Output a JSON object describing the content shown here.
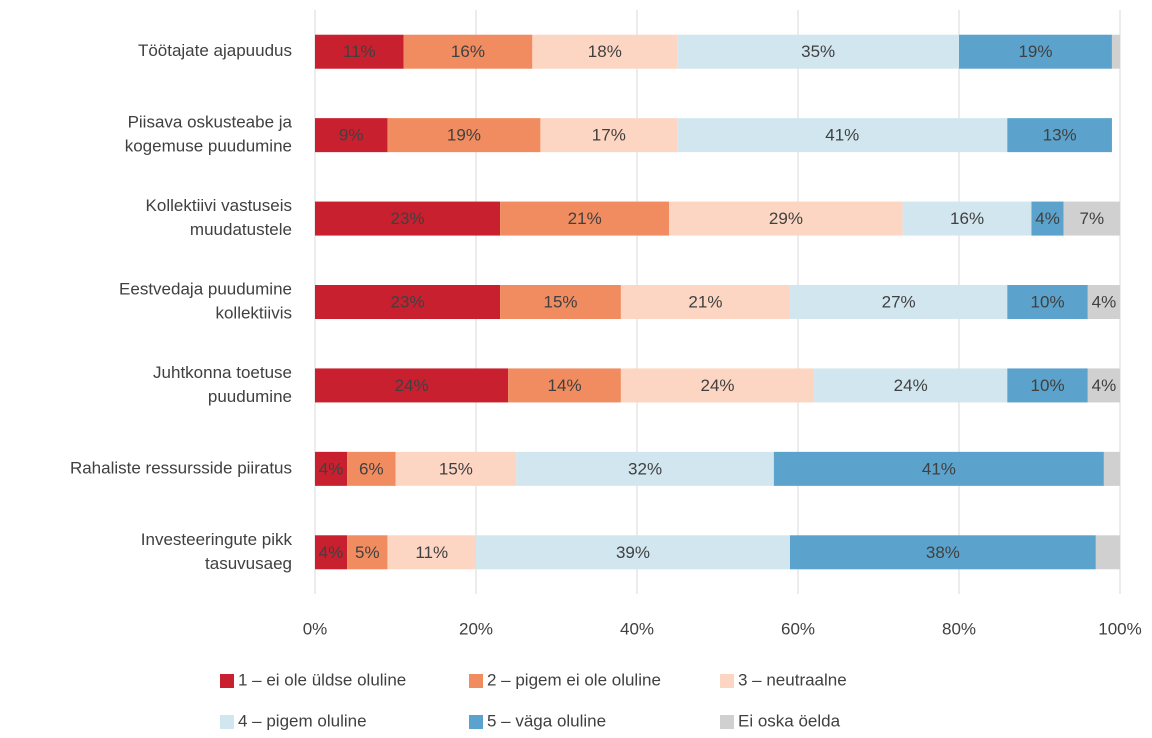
{
  "chart_data": {
    "type": "stacked-bar-horizontal",
    "categories": [
      [
        "Töötajate ajapuudus"
      ],
      [
        "Piisava oskusteabe ja",
        "kogemuse puudumine"
      ],
      [
        "Kollektiivi vastuseis",
        "muudatustele"
      ],
      [
        "Eestvedaja puudumine",
        "kollektiivis"
      ],
      [
        "Juhtkonna toetuse",
        "puudumine"
      ],
      [
        "Rahaliste ressursside piiratus"
      ],
      [
        "Investeeringute pikk",
        "tasuvusaeg"
      ]
    ],
    "series": [
      {
        "name": "1 – ei ole üldse oluline",
        "color": "#c8202f",
        "values": [
          11,
          9,
          23,
          23,
          24,
          4,
          4
        ],
        "value_labels": [
          "11%",
          "9%",
          "23%",
          "23%",
          "24%",
          "4%",
          "4%"
        ]
      },
      {
        "name": "2 – pigem ei ole oluline",
        "color": "#f08c5f",
        "values": [
          16,
          19,
          21,
          15,
          14,
          6,
          5
        ],
        "value_labels": [
          "16%",
          "19%",
          "21%",
          "15%",
          "14%",
          "6%",
          "5%"
        ]
      },
      {
        "name": "3 – neutraalne",
        "color": "#fcd6c2",
        "values": [
          18,
          17,
          29,
          21,
          24,
          15,
          11
        ],
        "value_labels": [
          "18%",
          "17%",
          "29%",
          "21%",
          "24%",
          "15%",
          "11%"
        ]
      },
      {
        "name": "4 – pigem oluline",
        "color": "#d2e6f0",
        "values": [
          35,
          41,
          16,
          27,
          24,
          32,
          39
        ],
        "value_labels": [
          "35%",
          "41%",
          "16%",
          "27%",
          "24%",
          "32%",
          "39%"
        ]
      },
      {
        "name": "5 – väga oluline",
        "color": "#5ba3cc",
        "values": [
          19,
          13,
          4,
          10,
          10,
          41,
          38
        ],
        "value_labels": [
          "19%",
          "13%",
          "4%",
          "10%",
          "10%",
          "41%",
          "38%"
        ]
      },
      {
        "name": "Ei oska öelda",
        "color": "#d0d0d0",
        "values": [
          1,
          0,
          7,
          4,
          4,
          2,
          3
        ],
        "value_labels": [
          null,
          null,
          "7%",
          "4%",
          "4%",
          null,
          null
        ]
      }
    ],
    "xlim": [
      0,
      100
    ],
    "xticks": [
      {
        "value": 0,
        "label": "0%"
      },
      {
        "value": 20,
        "label": "20%"
      },
      {
        "value": 40,
        "label": "40%"
      },
      {
        "value": 60,
        "label": "60%"
      },
      {
        "value": 80,
        "label": "80%"
      },
      {
        "value": 100,
        "label": "100%"
      }
    ],
    "grid": true,
    "legend": "bottom"
  }
}
